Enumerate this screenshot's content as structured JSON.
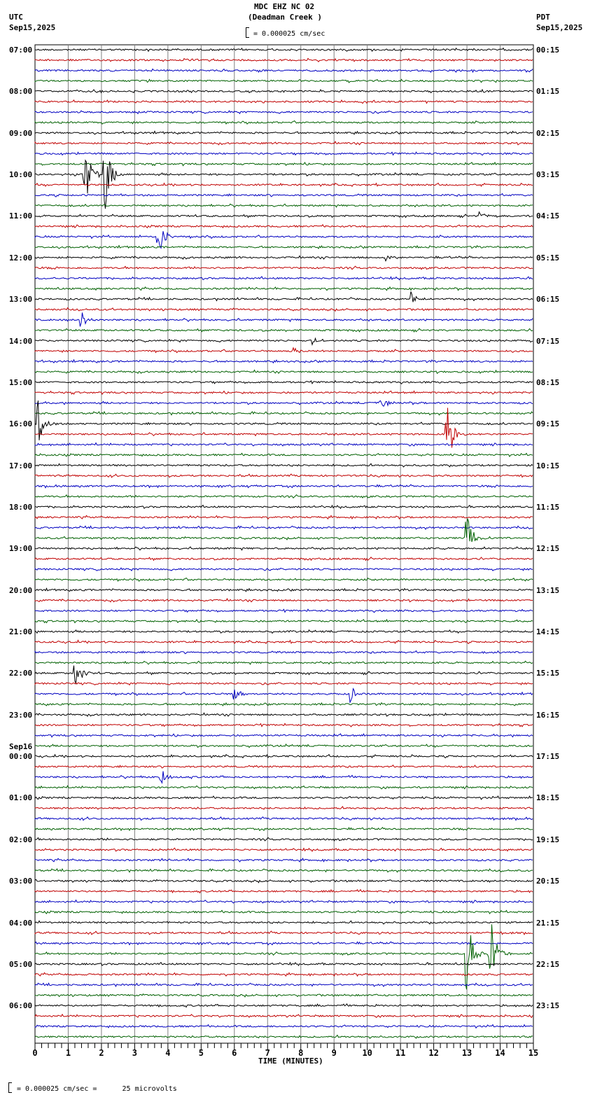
{
  "header": {
    "title": "MDC EHZ NC 02",
    "subtitle": "(Deadman Creek )",
    "scale_label": "= 0.000025 cm/sec",
    "left_tz": "UTC",
    "left_date": "Sep15,2025",
    "right_tz": "PDT",
    "right_date": "Sep15,2025"
  },
  "footer": {
    "scale_note": "= 0.000025 cm/sec =      25 microvolts",
    "x_axis_label": "TIME (MINUTES)"
  },
  "colors": {
    "trace_cycle": [
      "#000000",
      "#c00000",
      "#0000c0",
      "#006000"
    ],
    "grid": "#808080",
    "frame": "#000000"
  },
  "chart_data": {
    "type": "line",
    "title": "MDC EHZ NC 02 (Deadman Creek )",
    "subtitle": "Helicorder seismogram, 15 minutes per trace line",
    "xlabel": "TIME (MINUTES)",
    "ylabel": "",
    "xlim": [
      0,
      15
    ],
    "x_ticks": [
      "0",
      "1",
      "2",
      "3",
      "4",
      "5",
      "6",
      "7",
      "8",
      "9",
      "10",
      "11",
      "12",
      "13",
      "14",
      "15"
    ],
    "grid": true,
    "traces_per_hour": 4,
    "total_traces": 96,
    "left_labels_utc": [
      "07:00",
      "08:00",
      "09:00",
      "10:00",
      "11:00",
      "12:00",
      "13:00",
      "14:00",
      "15:00",
      "16:00",
      "17:00",
      "18:00",
      "19:00",
      "20:00",
      "21:00",
      "22:00",
      "23:00",
      "Sep16 00:00",
      "01:00",
      "02:00",
      "03:00",
      "04:00",
      "05:00",
      "06:00"
    ],
    "right_labels_pdt": [
      "00:15",
      "01:15",
      "02:15",
      "03:15",
      "04:15",
      "05:15",
      "06:15",
      "07:15",
      "08:15",
      "09:15",
      "10:15",
      "11:15",
      "12:15",
      "13:15",
      "14:15",
      "15:15",
      "16:15",
      "17:15",
      "18:15",
      "19:15",
      "20:15",
      "21:15",
      "22:15",
      "23:15"
    ],
    "events": [
      {
        "utc_hour": "10:00",
        "trace": 12,
        "minute": 1.5,
        "amplitude": "clipped large",
        "color": "black"
      },
      {
        "utc_hour": "10:00",
        "trace": 12,
        "minute": 2.1,
        "amplitude": "clipped large",
        "color": "black"
      },
      {
        "utc_hour": "11:30",
        "trace": 18,
        "minute": 3.7,
        "amplitude": "large",
        "color": "blue"
      },
      {
        "utc_hour": "11:00",
        "trace": 16,
        "minute": 13.4,
        "amplitude": "small",
        "color": "black"
      },
      {
        "utc_hour": "12:00",
        "trace": 20,
        "minute": 10.6,
        "amplitude": "small",
        "color": "black"
      },
      {
        "utc_hour": "13:00",
        "trace": 24,
        "minute": 11.3,
        "amplitude": "medium",
        "color": "black"
      },
      {
        "utc_hour": "13:30",
        "trace": 26,
        "minute": 1.4,
        "amplitude": "medium",
        "color": "blue"
      },
      {
        "utc_hour": "14:00",
        "trace": 28,
        "minute": 8.3,
        "amplitude": "small",
        "color": "black"
      },
      {
        "utc_hour": "14:15",
        "trace": 29,
        "minute": 7.8,
        "amplitude": "small",
        "color": "red"
      },
      {
        "utc_hour": "16:15",
        "trace": 37,
        "minute": 12.4,
        "amplitude": "clipped large",
        "color": "red"
      },
      {
        "utc_hour": "15:30",
        "trace": 34,
        "minute": 10.4,
        "amplitude": "medium",
        "color": "blue"
      },
      {
        "utc_hour": "16:00",
        "trace": 36,
        "minute": 0.1,
        "amplitude": "large",
        "color": "black"
      },
      {
        "utc_hour": "18:45",
        "trace": 47,
        "minute": 13.0,
        "amplitude": "large",
        "color": "green"
      },
      {
        "utc_hour": "22:00",
        "trace": 60,
        "minute": 1.2,
        "amplitude": "large burst",
        "color": "black"
      },
      {
        "utc_hour": "22:30",
        "trace": 62,
        "minute": 9.5,
        "amplitude": "medium",
        "color": "blue"
      },
      {
        "utc_hour": "22:30",
        "trace": 62,
        "minute": 6.0,
        "amplitude": "medium",
        "color": "blue"
      },
      {
        "utc_hour": "00:30",
        "trace": 70,
        "minute": 3.8,
        "amplitude": "medium",
        "color": "blue"
      },
      {
        "utc_hour": "04:45",
        "trace": 87,
        "minute": 13.0,
        "amplitude": "clipped large",
        "color": "black"
      },
      {
        "utc_hour": "04:45",
        "trace": 87,
        "minute": 13.7,
        "amplitude": "clipped large",
        "color": "black"
      }
    ]
  }
}
